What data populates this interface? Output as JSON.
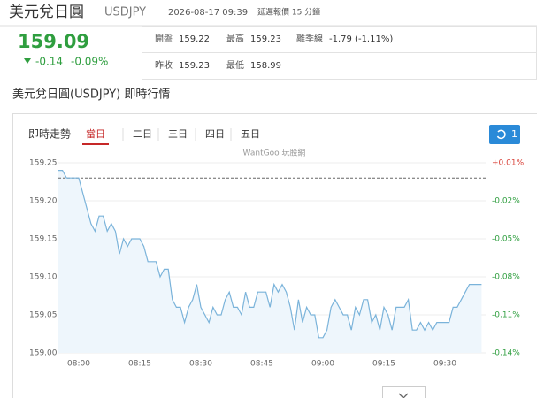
{
  "header": {
    "name": "美元兌日圓",
    "symbol": "USDJPY",
    "time": "2026-08-17 09:39",
    "delay_note": "延遲報價 15 分鐘"
  },
  "quote": {
    "price": 159.09,
    "change": -0.14,
    "change_pct": "-0.09%",
    "stats": [
      {
        "label": "開盤",
        "value": 159.22
      },
      {
        "label": "最高",
        "value": 159.23
      },
      {
        "label": "離季線",
        "value": "-1.79 (-1.11%)"
      },
      {
        "label": "昨收",
        "value": 159.23
      },
      {
        "label": "最低",
        "value": 158.99
      }
    ]
  },
  "section_title": "美元兌日圓(USDJPY) 即時行情",
  "chart_tabs": {
    "label": "即時走勢",
    "items": [
      "當日",
      "二日",
      "三日",
      "四日",
      "五日"
    ],
    "active": 0,
    "refresh_count": 1
  },
  "watermark": "WantGoo 玩股網",
  "chart_data": {
    "type": "line",
    "color": "#7ab3da",
    "area_color": "#eef6fc",
    "grid": true,
    "up_color": "#d9433a",
    "down_color": "#2f9e3f",
    "reference_line": 159.23,
    "x": [
      "07:55",
      "07:56",
      "07:57",
      "07:58",
      "07:59",
      "08:00",
      "08:01",
      "08:02",
      "08:03",
      "08:04",
      "08:05",
      "08:06",
      "08:07",
      "08:08",
      "08:09",
      "08:10",
      "08:11",
      "08:12",
      "08:13",
      "08:14",
      "08:15",
      "08:16",
      "08:17",
      "08:18",
      "08:19",
      "08:20",
      "08:21",
      "08:22",
      "08:23",
      "08:24",
      "08:25",
      "08:26",
      "08:27",
      "08:28",
      "08:29",
      "08:30",
      "08:31",
      "08:32",
      "08:33",
      "08:34",
      "08:35",
      "08:36",
      "08:37",
      "08:38",
      "08:39",
      "08:40",
      "08:41",
      "08:42",
      "08:43",
      "08:44",
      "08:45",
      "08:46",
      "08:47",
      "08:48",
      "08:49",
      "08:50",
      "08:51",
      "08:52",
      "08:53",
      "08:54",
      "08:55",
      "08:56",
      "08:57",
      "08:58",
      "08:59",
      "09:00",
      "09:01",
      "09:02",
      "09:03",
      "09:04",
      "09:05",
      "09:06",
      "09:07",
      "09:08",
      "09:09",
      "09:10",
      "09:11",
      "09:12",
      "09:13",
      "09:14",
      "09:15",
      "09:16",
      "09:17",
      "09:18",
      "09:19",
      "09:20",
      "09:21",
      "09:22",
      "09:23",
      "09:24",
      "09:25",
      "09:26",
      "09:27",
      "09:28",
      "09:29",
      "09:30",
      "09:31",
      "09:32",
      "09:33",
      "09:34",
      "09:35",
      "09:36",
      "09:37",
      "09:38",
      "09:39"
    ],
    "values": [
      159.24,
      159.24,
      159.23,
      159.23,
      159.23,
      159.23,
      159.21,
      159.19,
      159.17,
      159.16,
      159.18,
      159.18,
      159.16,
      159.17,
      159.16,
      159.13,
      159.15,
      159.14,
      159.15,
      159.15,
      159.15,
      159.14,
      159.12,
      159.12,
      159.12,
      159.1,
      159.11,
      159.11,
      159.07,
      159.06,
      159.06,
      159.04,
      159.06,
      159.07,
      159.09,
      159.06,
      159.05,
      159.04,
      159.06,
      159.05,
      159.05,
      159.07,
      159.08,
      159.06,
      159.06,
      159.05,
      159.08,
      159.06,
      159.06,
      159.08,
      159.08,
      159.08,
      159.06,
      159.09,
      159.08,
      159.09,
      159.08,
      159.06,
      159.03,
      159.07,
      159.04,
      159.06,
      159.05,
      159.05,
      159.02,
      159.02,
      159.03,
      159.06,
      159.07,
      159.06,
      159.05,
      159.05,
      159.03,
      159.06,
      159.05,
      159.07,
      159.07,
      159.04,
      159.05,
      159.03,
      159.06,
      159.05,
      159.03,
      159.06,
      159.06,
      159.06,
      159.07,
      159.03,
      159.03,
      159.04,
      159.03,
      159.04,
      159.03,
      159.04,
      159.04,
      159.04,
      159.04,
      159.06,
      159.06,
      159.07,
      159.08,
      159.09,
      159.09,
      159.09,
      159.09
    ],
    "xlim": [
      "07:55",
      "09:40"
    ],
    "xticks": [
      "08:00",
      "08:15",
      "08:30",
      "08:45",
      "09:00",
      "09:15",
      "09:30"
    ],
    "ylim": [
      159.0,
      159.25
    ],
    "yticks": [
      {
        "value": 159.0,
        "label": "159.00"
      },
      {
        "value": 159.05,
        "label": "159.05"
      },
      {
        "value": 159.1,
        "label": "159.10"
      },
      {
        "value": 159.15,
        "label": "159.15"
      },
      {
        "value": 159.2,
        "label": "159.20"
      },
      159.25
    ],
    "y2lim": [
      -0.14,
      0.01
    ],
    "y2ticks": [
      {
        "value": 0.01,
        "label": "+0.01%"
      },
      {
        "value": -0.02,
        "label": "-0.02%"
      },
      {
        "value": -0.05,
        "label": "-0.05%"
      },
      {
        "value": -0.08,
        "label": "-0.08%"
      },
      {
        "value": -0.11,
        "label": "-0.11%"
      },
      {
        "value": -0.14,
        "label": "-0.14%"
      }
    ]
  }
}
